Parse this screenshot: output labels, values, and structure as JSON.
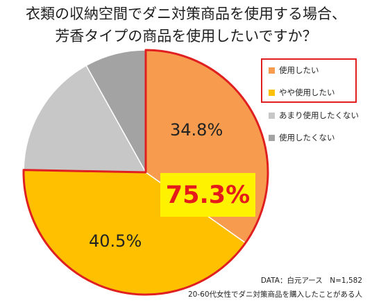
{
  "title_line1": "衣類の収納空間でダニ対策商品を使用する場合、",
  "title_line2": "芳香タイプの商品を使用したいですか？",
  "highlight_label": "75.3%",
  "source_line1": "DATA：白元アース　N=1,582",
  "source_line2": "20-60代女性でダニ対策商品を購入したことがある人",
  "chart_data": {
    "type": "pie",
    "title": "衣類の収納空間でダニ対策商品を使用する場合、芳香タイプの商品を使用したいですか？",
    "categories": [
      "使用したい",
      "やや使用したい",
      "あまり使用したくない",
      "使用したくない"
    ],
    "values": [
      34.8,
      40.5,
      16.6,
      8.1
    ],
    "value_labels": [
      "34.8%",
      "40.5%",
      "",
      ""
    ],
    "colors": [
      "#f79c4f",
      "#ffc000",
      "#c7c7c7",
      "#a3a3a3"
    ],
    "highlighted_categories": [
      "使用したい",
      "やや使用したい"
    ],
    "highlight_total": "75.3%",
    "start": "12 o'clock",
    "direction": "clockwise",
    "legend_position": "right"
  }
}
